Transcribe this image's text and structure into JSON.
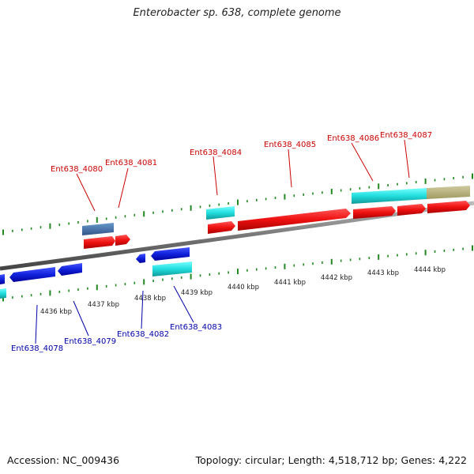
{
  "title": "Enterobacter sp. 638, complete genome",
  "footer": {
    "accession": "Accession: NC_009436",
    "summary": "Topology: circular; Length: 4,518,712 bp; Genes: 4,222"
  },
  "scale": [
    "4436 kbp",
    "4437 kbp",
    "4438 kbp",
    "4439 kbp",
    "4440 kbp",
    "4441 kbp",
    "4442 kbp",
    "4443 kbp",
    "4444 kbp"
  ],
  "genes_top": [
    "Ent638_4080",
    "Ent638_4081",
    "Ent638_4084",
    "Ent638_4085",
    "Ent638_4086",
    "Ent638_4087"
  ],
  "genes_bottom": [
    "Ent638_4078",
    "Ent638_4079",
    "Ent638_4082",
    "Ent638_4083"
  ],
  "colors": {
    "cds": "#ee1111",
    "cds_reverse": "#1122dd",
    "rna": "#22dddd",
    "misc": "#4477aa",
    "region": "#b8b37a",
    "tick": "#228822",
    "backbone": "#888888",
    "label_forward": "#cc0000",
    "label_reverse": "#0000aa"
  }
}
